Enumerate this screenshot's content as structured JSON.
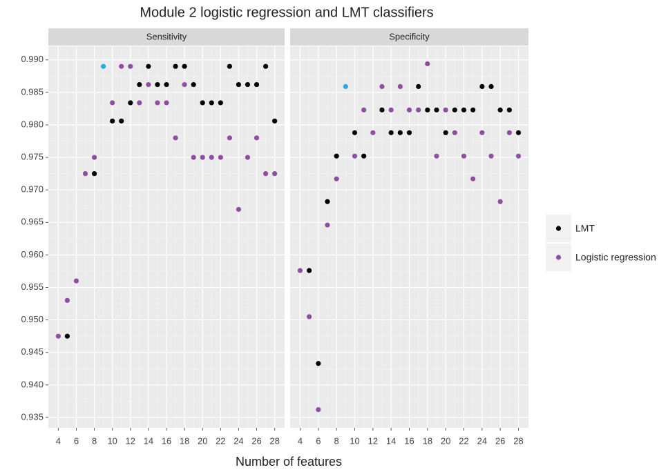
{
  "title": "Module 2 logistic regression and LMT classifiers",
  "x_label": "Number of features",
  "chart_data": [
    {
      "type": "scatter",
      "facet": "Sensitivity",
      "xlim": [
        2.9,
        29.1
      ],
      "ylim": [
        0.9334,
        0.9921
      ],
      "xticks": [
        4,
        6,
        8,
        10,
        12,
        14,
        16,
        18,
        20,
        22,
        24,
        26,
        28
      ],
      "yticks": [
        0.935,
        {
          "value": 0.94,
          "label": "0.940"
        },
        0.945,
        {
          "value": 0.95,
          "label": "0.950"
        },
        0.955,
        {
          "value": 0.96,
          "label": "0.960"
        },
        0.965,
        {
          "value": 0.97,
          "label": "0.970"
        },
        0.975,
        {
          "value": 0.98,
          "label": "0.980"
        },
        0.985,
        {
          "value": 0.99,
          "label": "0.990"
        }
      ],
      "grid": true,
      "series": [
        {
          "name": "LMT",
          "color": "#000000",
          "x": [
            5,
            8,
            10,
            11,
            12,
            13,
            14,
            15,
            16,
            17,
            18,
            19,
            20,
            21,
            22,
            23,
            24,
            25,
            26,
            27,
            28
          ],
          "values": [
            0.9475,
            0.9725,
            0.9806,
            0.9806,
            0.9834,
            0.9862,
            0.989,
            0.9862,
            0.9862,
            0.989,
            0.989,
            0.9862,
            0.9834,
            0.9834,
            0.9834,
            0.989,
            0.9862,
            0.9862,
            0.9862,
            0.989,
            0.9806
          ]
        },
        {
          "name": "Logistic regression",
          "color": "#8e4fa0",
          "x": [
            4,
            5,
            6,
            7,
            8,
            10,
            11,
            12,
            13,
            14,
            15,
            16,
            17,
            18,
            19,
            20,
            21,
            22,
            23,
            24,
            25,
            26,
            27,
            28
          ],
          "values": [
            0.9475,
            0.953,
            0.956,
            0.9725,
            0.975,
            0.9834,
            0.989,
            0.989,
            0.9834,
            0.9862,
            0.9834,
            0.9834,
            0.978,
            0.9862,
            0.975,
            0.975,
            0.975,
            0.975,
            0.978,
            0.967,
            0.975,
            0.978,
            0.9725,
            0.9725
          ]
        },
        {
          "color": "#29abe2",
          "x": [
            9
          ],
          "values": [
            0.989
          ]
        }
      ]
    },
    {
      "type": "scatter",
      "facet": "Specificity",
      "xlim": [
        2.9,
        29.1
      ],
      "ylim": [
        0.9334,
        0.9921
      ],
      "xticks": [
        4,
        6,
        8,
        10,
        12,
        14,
        16,
        18,
        20,
        22,
        24,
        26,
        28
      ],
      "yticks": [
        0.935,
        {
          "value": 0.94,
          "label": "0.940"
        },
        0.945,
        {
          "value": 0.95,
          "label": "0.950"
        },
        0.955,
        {
          "value": 0.96,
          "label": "0.960"
        },
        0.965,
        {
          "value": 0.97,
          "label": "0.970"
        },
        0.975,
        {
          "value": 0.98,
          "label": "0.980"
        },
        0.985,
        {
          "value": 0.99,
          "label": "0.990"
        }
      ],
      "grid": true,
      "series": [
        {
          "name": "LMT",
          "color": "#000000",
          "x": [
            5,
            6,
            7,
            8,
            10,
            11,
            13,
            14,
            15,
            16,
            17,
            18,
            19,
            20,
            21,
            22,
            23,
            24,
            25,
            26,
            27,
            28
          ],
          "values": [
            0.9576,
            0.9433,
            0.9682,
            0.9752,
            0.9788,
            0.9752,
            0.9823,
            0.9788,
            0.9788,
            0.9788,
            0.9859,
            0.9823,
            0.9823,
            0.9788,
            0.9823,
            0.9823,
            0.9823,
            0.9859,
            0.9859,
            0.9823,
            0.9823,
            0.9788
          ]
        },
        {
          "name": "Logistic regression",
          "color": "#8e4fa0",
          "x": [
            4,
            5,
            6,
            7,
            8,
            10,
            11,
            12,
            13,
            14,
            15,
            16,
            17,
            18,
            19,
            20,
            21,
            22,
            23,
            24,
            25,
            26,
            27,
            28
          ],
          "values": [
            0.9576,
            0.9505,
            0.9362,
            0.9646,
            0.9717,
            0.9752,
            0.9823,
            0.9788,
            0.9859,
            0.9823,
            0.9859,
            0.9823,
            0.9823,
            0.9894,
            0.9752,
            0.9823,
            0.9788,
            0.9752,
            0.9717,
            0.9788,
            0.9752,
            0.9682,
            0.9788,
            0.9752
          ]
        },
        {
          "color": "#29abe2",
          "x": [
            9
          ],
          "values": [
            0.9859
          ]
        }
      ]
    }
  ]
}
